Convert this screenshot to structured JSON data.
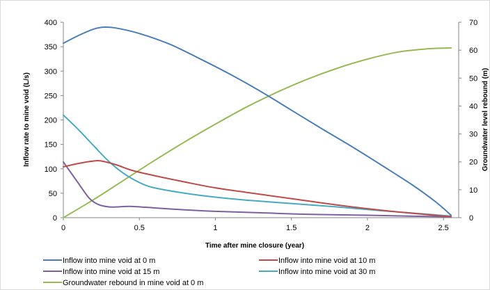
{
  "chart_data": {
    "type": "line",
    "title": "",
    "xlabel": "Time after mine closure (year)",
    "ylabel": "Inflow rate to mine void (L/s)",
    "y2label": "Groundwater level rebound (m)",
    "xlim": [
      0,
      2.6
    ],
    "ylim": [
      0,
      400
    ],
    "y2lim": [
      0,
      70
    ],
    "x_ticks": [
      "0",
      "0.5",
      "1",
      "1.5",
      "2",
      "2.5"
    ],
    "y_ticks": [
      "0",
      "50",
      "100",
      "150",
      "200",
      "250",
      "300",
      "350",
      "400"
    ],
    "y2_ticks": [
      "0",
      "10",
      "20",
      "30",
      "40",
      "50",
      "60",
      "70"
    ],
    "grid": false,
    "legend_position": "bottom",
    "colors": {
      "s0": "#4a7ebb",
      "s10": "#be4b48",
      "s15": "#7d60a0",
      "s30": "#46aac5",
      "rebound": "#98b954"
    },
    "series": [
      {
        "name": "Inflow into mine void at 0 m",
        "axis": "left",
        "color_key": "s0",
        "points": [
          [
            0,
            357
          ],
          [
            0.1,
            373
          ],
          [
            0.2,
            386
          ],
          [
            0.27,
            390
          ],
          [
            0.35,
            388
          ],
          [
            0.5,
            377
          ],
          [
            0.7,
            355
          ],
          [
            0.9,
            325
          ],
          [
            1.1,
            293
          ],
          [
            1.3,
            258
          ],
          [
            1.5,
            220
          ],
          [
            1.7,
            182
          ],
          [
            1.9,
            145
          ],
          [
            2.1,
            106
          ],
          [
            2.3,
            66
          ],
          [
            2.45,
            32
          ],
          [
            2.55,
            5
          ]
        ]
      },
      {
        "name": "Inflow into mine void at 10 m",
        "axis": "left",
        "color_key": "s10",
        "points": [
          [
            0,
            104
          ],
          [
            0.1,
            111
          ],
          [
            0.2,
            116
          ],
          [
            0.25,
            116
          ],
          [
            0.35,
            108
          ],
          [
            0.45,
            97
          ],
          [
            0.6,
            86
          ],
          [
            0.8,
            73
          ],
          [
            1.0,
            61
          ],
          [
            1.2,
            52
          ],
          [
            1.5,
            39
          ],
          [
            1.8,
            26
          ],
          [
            2.1,
            15
          ],
          [
            2.4,
            6
          ],
          [
            2.55,
            2
          ]
        ]
      },
      {
        "name": "Inflow into mine void at 15 m",
        "axis": "left",
        "color_key": "s15",
        "points": [
          [
            0,
            114
          ],
          [
            0.1,
            70
          ],
          [
            0.17,
            40
          ],
          [
            0.23,
            27
          ],
          [
            0.3,
            22
          ],
          [
            0.35,
            22
          ],
          [
            0.45,
            23
          ],
          [
            0.6,
            20
          ],
          [
            0.8,
            16
          ],
          [
            1.0,
            13
          ],
          [
            1.3,
            10
          ],
          [
            1.6,
            7
          ],
          [
            2.0,
            5
          ],
          [
            2.3,
            3
          ],
          [
            2.55,
            2
          ]
        ]
      },
      {
        "name": "Inflow into mine void at 30 m",
        "axis": "left",
        "color_key": "s30",
        "points": [
          [
            0,
            210
          ],
          [
            0.1,
            180
          ],
          [
            0.2,
            147
          ],
          [
            0.3,
            115
          ],
          [
            0.4,
            90
          ],
          [
            0.5,
            72
          ],
          [
            0.6,
            61
          ],
          [
            0.8,
            50
          ],
          [
            1.0,
            42
          ],
          [
            1.2,
            36
          ],
          [
            1.5,
            29
          ],
          [
            1.8,
            22
          ],
          [
            2.1,
            14
          ],
          [
            2.4,
            7
          ],
          [
            2.55,
            3
          ]
        ]
      },
      {
        "name": "Groundwater rebound in mine void at 0 m",
        "axis": "right",
        "color_key": "rebound",
        "points": [
          [
            0,
            0
          ],
          [
            0.2,
            6.5
          ],
          [
            0.4,
            13.5
          ],
          [
            0.6,
            20.5
          ],
          [
            0.8,
            27.2
          ],
          [
            1.0,
            33.5
          ],
          [
            1.2,
            39.5
          ],
          [
            1.4,
            44.8
          ],
          [
            1.6,
            49.5
          ],
          [
            1.8,
            53.5
          ],
          [
            2.0,
            56.8
          ],
          [
            2.2,
            59.3
          ],
          [
            2.4,
            60.5
          ],
          [
            2.55,
            60.8
          ]
        ]
      }
    ]
  }
}
